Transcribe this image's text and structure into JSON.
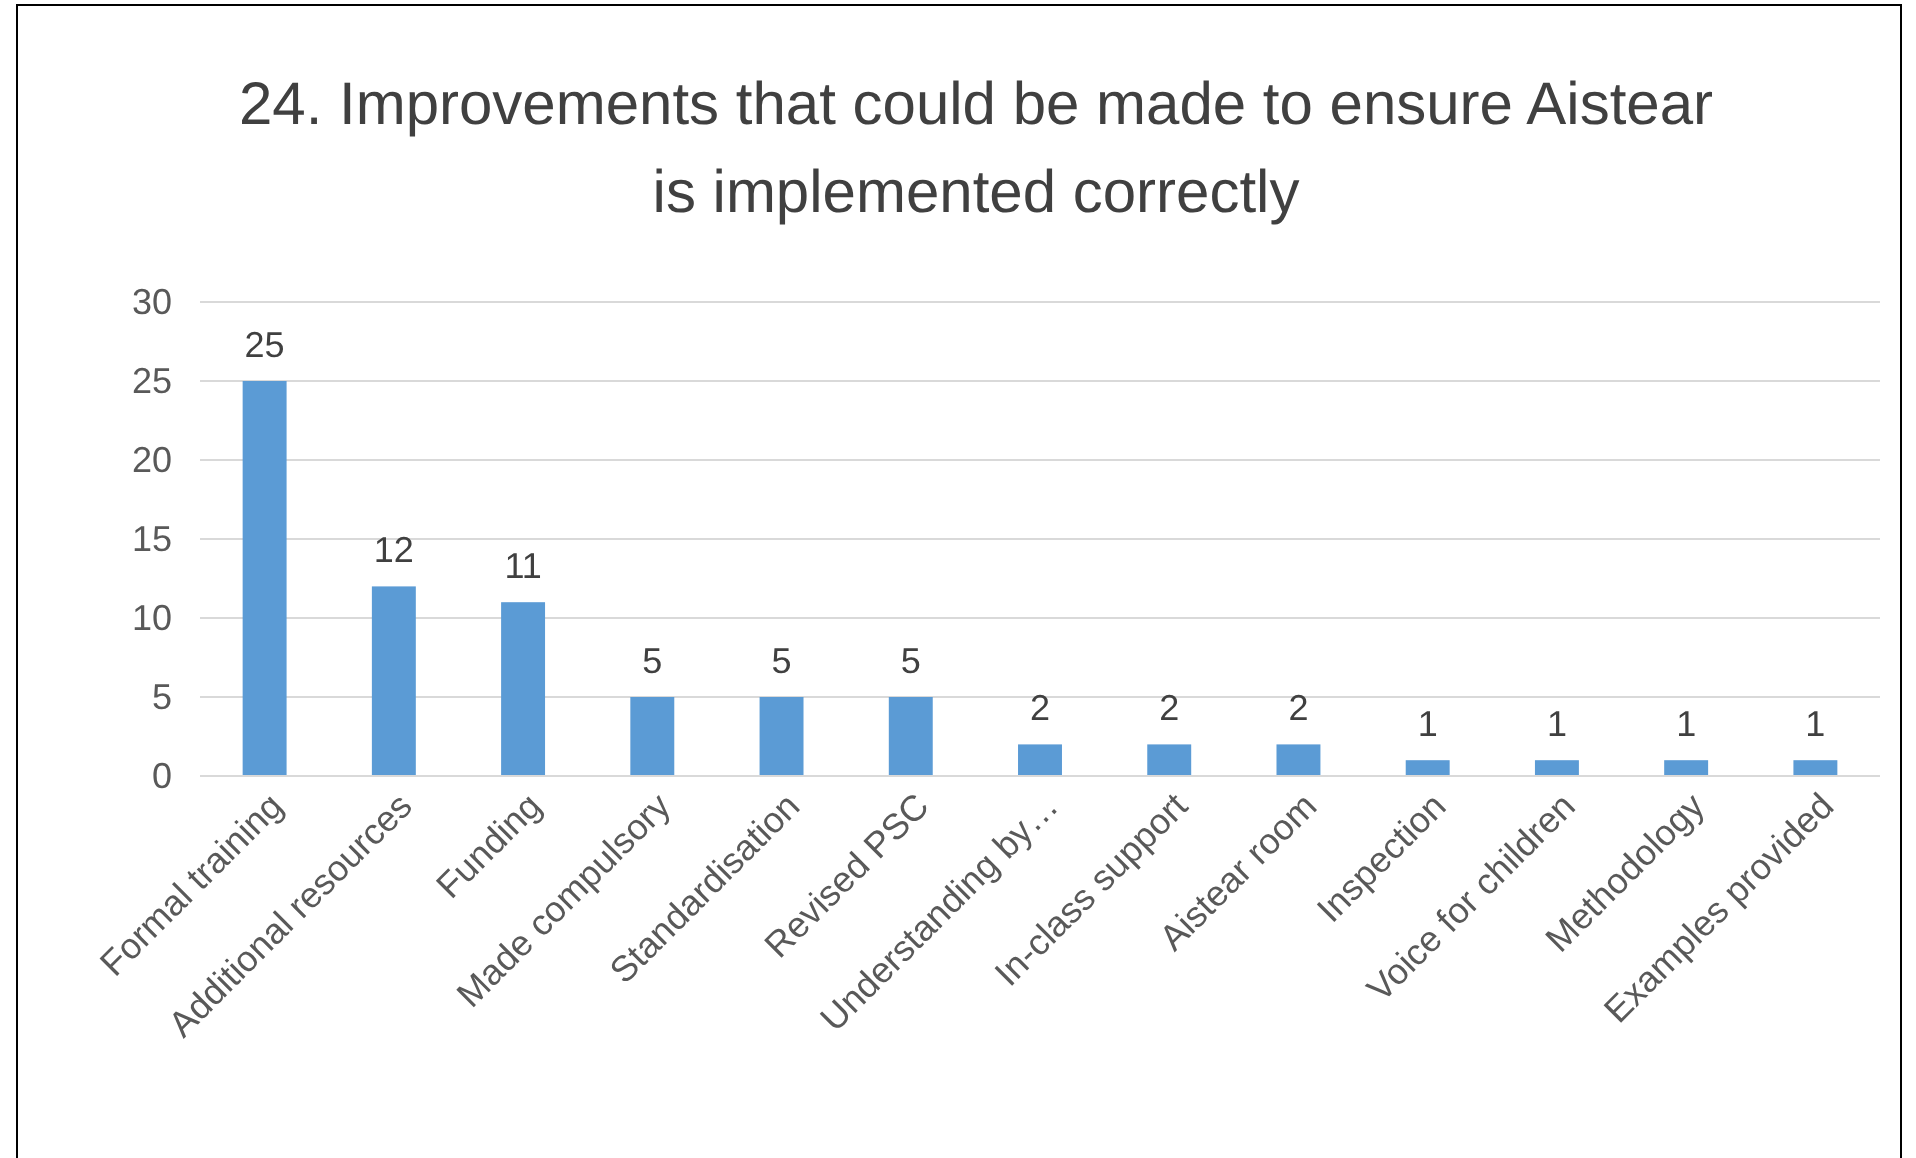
{
  "chart_data": {
    "type": "bar",
    "title": "24. Improvements that could be made to ensure Aistear is implemented correctly",
    "categories": [
      "Formal training",
      "Additional resources",
      "Funding",
      "Made compulsory",
      "Standardisation",
      "Revised PSC",
      "Understanding by…",
      "In-class support",
      "Aistear room",
      "Inspection",
      "Voice for children",
      "Methodology",
      "Examples provided"
    ],
    "values": [
      25,
      12,
      11,
      5,
      5,
      5,
      2,
      2,
      2,
      1,
      1,
      1,
      1
    ],
    "color": "#5b9bd5",
    "ylim": [
      0,
      30
    ],
    "yticks": [
      0,
      5,
      10,
      15,
      20,
      25,
      30
    ],
    "grid": "y",
    "data_labels": true
  }
}
